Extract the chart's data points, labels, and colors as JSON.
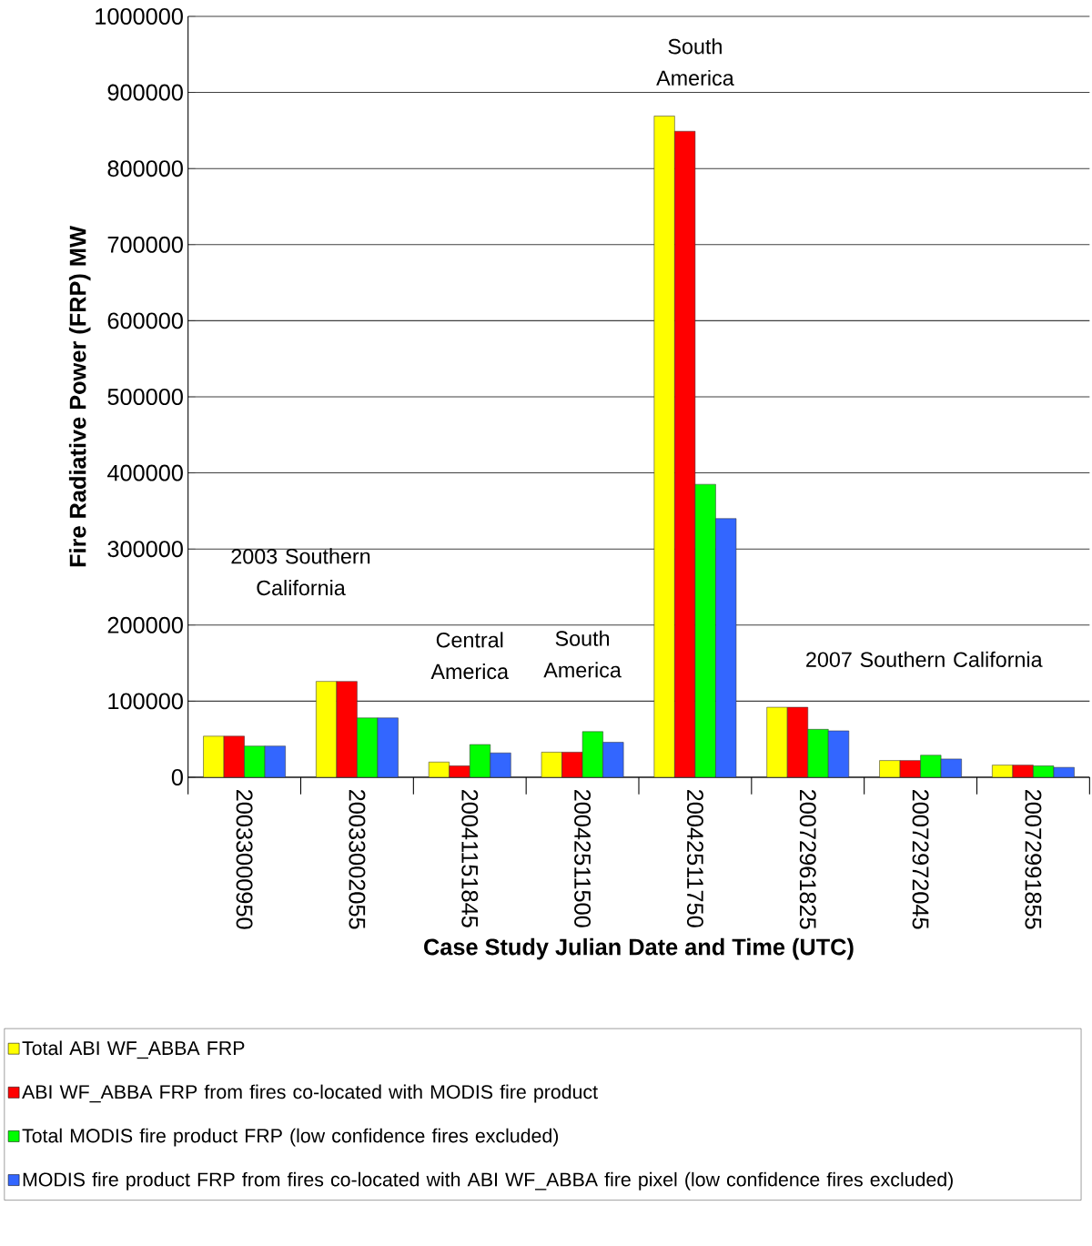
{
  "chart_data": {
    "type": "bar",
    "xlabel": "Case Study Julian Date and Time (UTC)",
    "ylabel": "Fire Radiative Power (FRP) MW",
    "categories": [
      "20033000950",
      "20033002055",
      "20041151845",
      "20042511500",
      "20042511750",
      "20072961825",
      "20072972045",
      "20072991855"
    ],
    "series": [
      {
        "name": "Total ABI WF_ABBA FRP",
        "color": "#ffff00",
        "values": [
          54000,
          126000,
          20000,
          33000,
          869000,
          92000,
          22000,
          16000
        ]
      },
      {
        "name": "ABI WF_ABBA FRP from fires co-located with MODIS fire product",
        "color": "#ff0000",
        "values": [
          54000,
          126000,
          15000,
          33000,
          849000,
          92000,
          22000,
          16000
        ]
      },
      {
        "name": "Total MODIS fire product FRP (low confidence fires excluded)",
        "color": "#00ff00",
        "values": [
          41000,
          78000,
          43000,
          60000,
          385000,
          63000,
          29000,
          15000
        ]
      },
      {
        "name": "MODIS fire product FRP from fires co-located with ABI WF_ABBA fire pixel (low confidence fires excluded)",
        "color": "#3366ff",
        "values": [
          41000,
          78000,
          32000,
          46000,
          340000,
          61000,
          24000,
          13000
        ]
      }
    ],
    "ylim": [
      0,
      1000000
    ],
    "yticks": [
      0,
      100000,
      200000,
      300000,
      400000,
      500000,
      600000,
      700000,
      800000,
      900000,
      1000000
    ],
    "grid": "y",
    "legend": "bottom",
    "annotations": [
      "2003 Southern California",
      "Central America",
      "South America",
      "South America",
      "2007 Southern California"
    ]
  }
}
